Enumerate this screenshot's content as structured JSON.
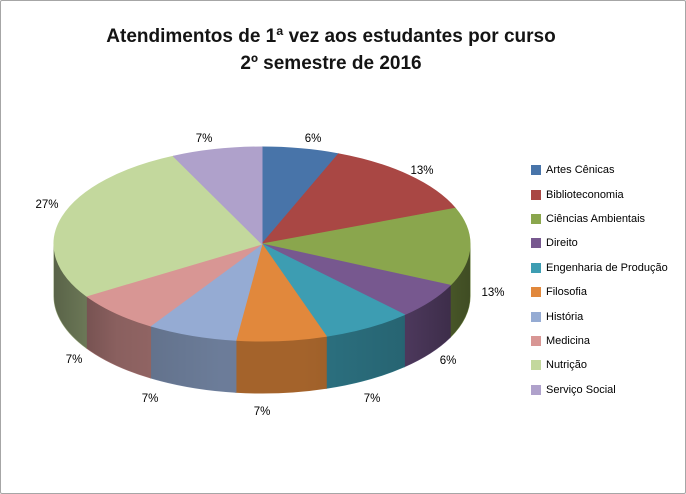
{
  "title": {
    "line1": "Atendimentos de 1ª vez aos estudantes por curso",
    "line2": "2º semestre de 2016"
  },
  "border_color": "#A6A6A6",
  "chart_data": {
    "type": "pie",
    "style": "3d",
    "title": "Atendimentos de 1ª vez aos estudantes por curso — 2º semestre de 2016",
    "categories": [
      "Artes Cênicas",
      "Biblioteconomia",
      "Ciências Ambientais",
      "Direito",
      "Engenharia de Produção",
      "Filosofia",
      "História",
      "Medicina",
      "Nutrição",
      "Serviço Social"
    ],
    "values": [
      6,
      13,
      13,
      6,
      7,
      7,
      7,
      7,
      27,
      7
    ],
    "unit": "%",
    "data_labels": [
      "6%",
      "13%",
      "13%",
      "6%",
      "7%",
      "7%",
      "7%",
      "7%",
      "27%",
      "7%"
    ],
    "colors": [
      "#4874A9",
      "#A94744",
      "#8AA64D",
      "#77588F",
      "#3D9DB2",
      "#E1883C",
      "#95ABD3",
      "#D89694",
      "#C3D89D",
      "#AFA1CB"
    ],
    "legend_position": "right",
    "start_angle_deg": 0,
    "direction": "clockwise"
  }
}
